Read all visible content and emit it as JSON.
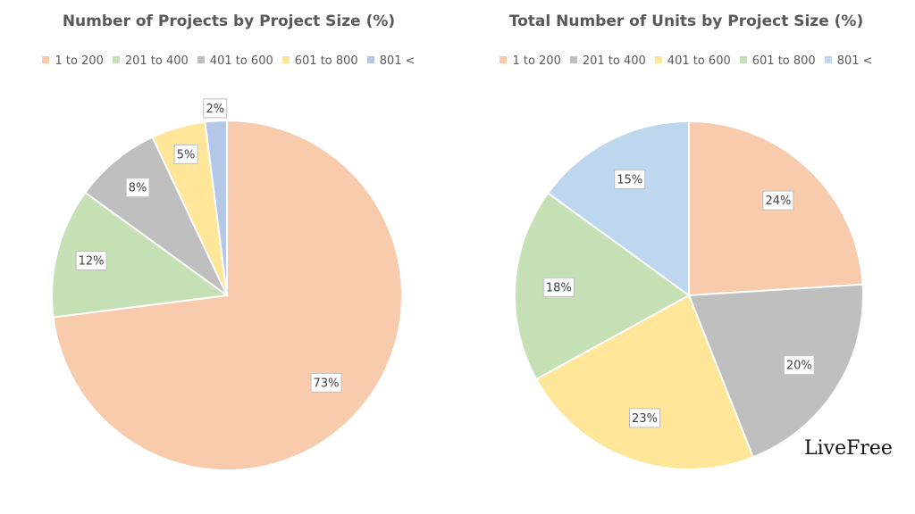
{
  "chart_data": [
    {
      "type": "pie",
      "title": "Number of Projects by Project Size (%)",
      "categories": [
        "1 to 200",
        "201 to 400",
        "401 to 600",
        "601 to 800",
        "801 <"
      ],
      "values": [
        73,
        12,
        8,
        5,
        2
      ],
      "labels": [
        "73%",
        "12%",
        "8%",
        "5%",
        "2%"
      ],
      "colors": [
        "#F8CBAD",
        "#C5E0B4",
        "#BFBFBF",
        "#FFE699",
        "#B4C7E7"
      ],
      "legend_position": "top"
    },
    {
      "type": "pie",
      "title": "Total Number of Units by Project Size (%)",
      "categories": [
        "1 to 200",
        "201 to 400",
        "401 to 600",
        "601 to 800",
        "801 <"
      ],
      "values": [
        24,
        20,
        23,
        18,
        15
      ],
      "labels": [
        "24%",
        "20%",
        "23%",
        "18%",
        "15%"
      ],
      "colors": [
        "#F8CBAD",
        "#BFBFBF",
        "#FFE699",
        "#C5E0B4",
        "#BDD7EE"
      ],
      "legend_position": "top"
    }
  ],
  "brand": "LiveFree"
}
